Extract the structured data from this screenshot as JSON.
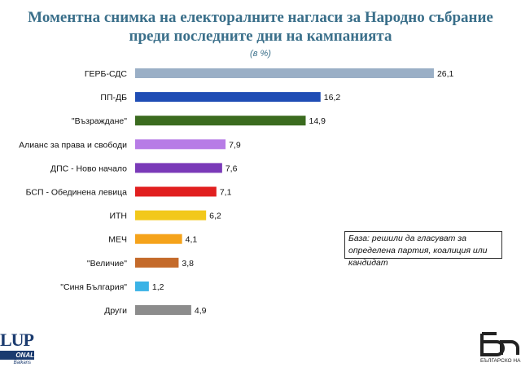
{
  "title_line1": "Моментна снимка на електоралните нагласи за Народно събрание",
  "title_line2": "преди последните дни на кампанията",
  "subtitle": "(в %)",
  "note": "База: решили да гласуват за определена партия, коалиция или кандидат",
  "logo_left": {
    "big": "LUP",
    "band": "ONAL",
    "small": "Balkans"
  },
  "logo_right": {
    "caption": "БЪЛГАРСКО НА"
  },
  "chart_data": {
    "type": "bar",
    "orientation": "horizontal",
    "title": "Моментна снимка на електоралните нагласи за Народно събрание преди последните дни на кампанията",
    "subtitle": "(в %)",
    "xlabel": "",
    "ylabel": "",
    "xlim": [
      0,
      28
    ],
    "grid": false,
    "legend": "none",
    "categories": [
      "ГЕРБ-СДС",
      "ПП-ДБ",
      "\"Възраждане\"",
      "Алианс за права и свободи",
      "ДПС - Ново начало",
      "БСП - Обединена левица",
      "ИТН",
      "МЕЧ",
      "\"Величие\"",
      "\"Синя България\"",
      "Други"
    ],
    "values": [
      26.1,
      16.2,
      14.9,
      7.9,
      7.6,
      7.1,
      6.2,
      4.1,
      3.8,
      1.2,
      4.9
    ],
    "value_labels": [
      "26,1",
      "16,2",
      "14,9",
      "7,9",
      "7,6",
      "7,1",
      "6,2",
      "4,1",
      "3,8",
      "1,2",
      "4,9"
    ],
    "colors": [
      "#9aafc6",
      "#1f4db5",
      "#3b6b1f",
      "#b77ce6",
      "#7a3ab8",
      "#e11f1f",
      "#f2c81b",
      "#f5a31b",
      "#c46a2a",
      "#3bb3e6",
      "#8c8c8c"
    ]
  }
}
